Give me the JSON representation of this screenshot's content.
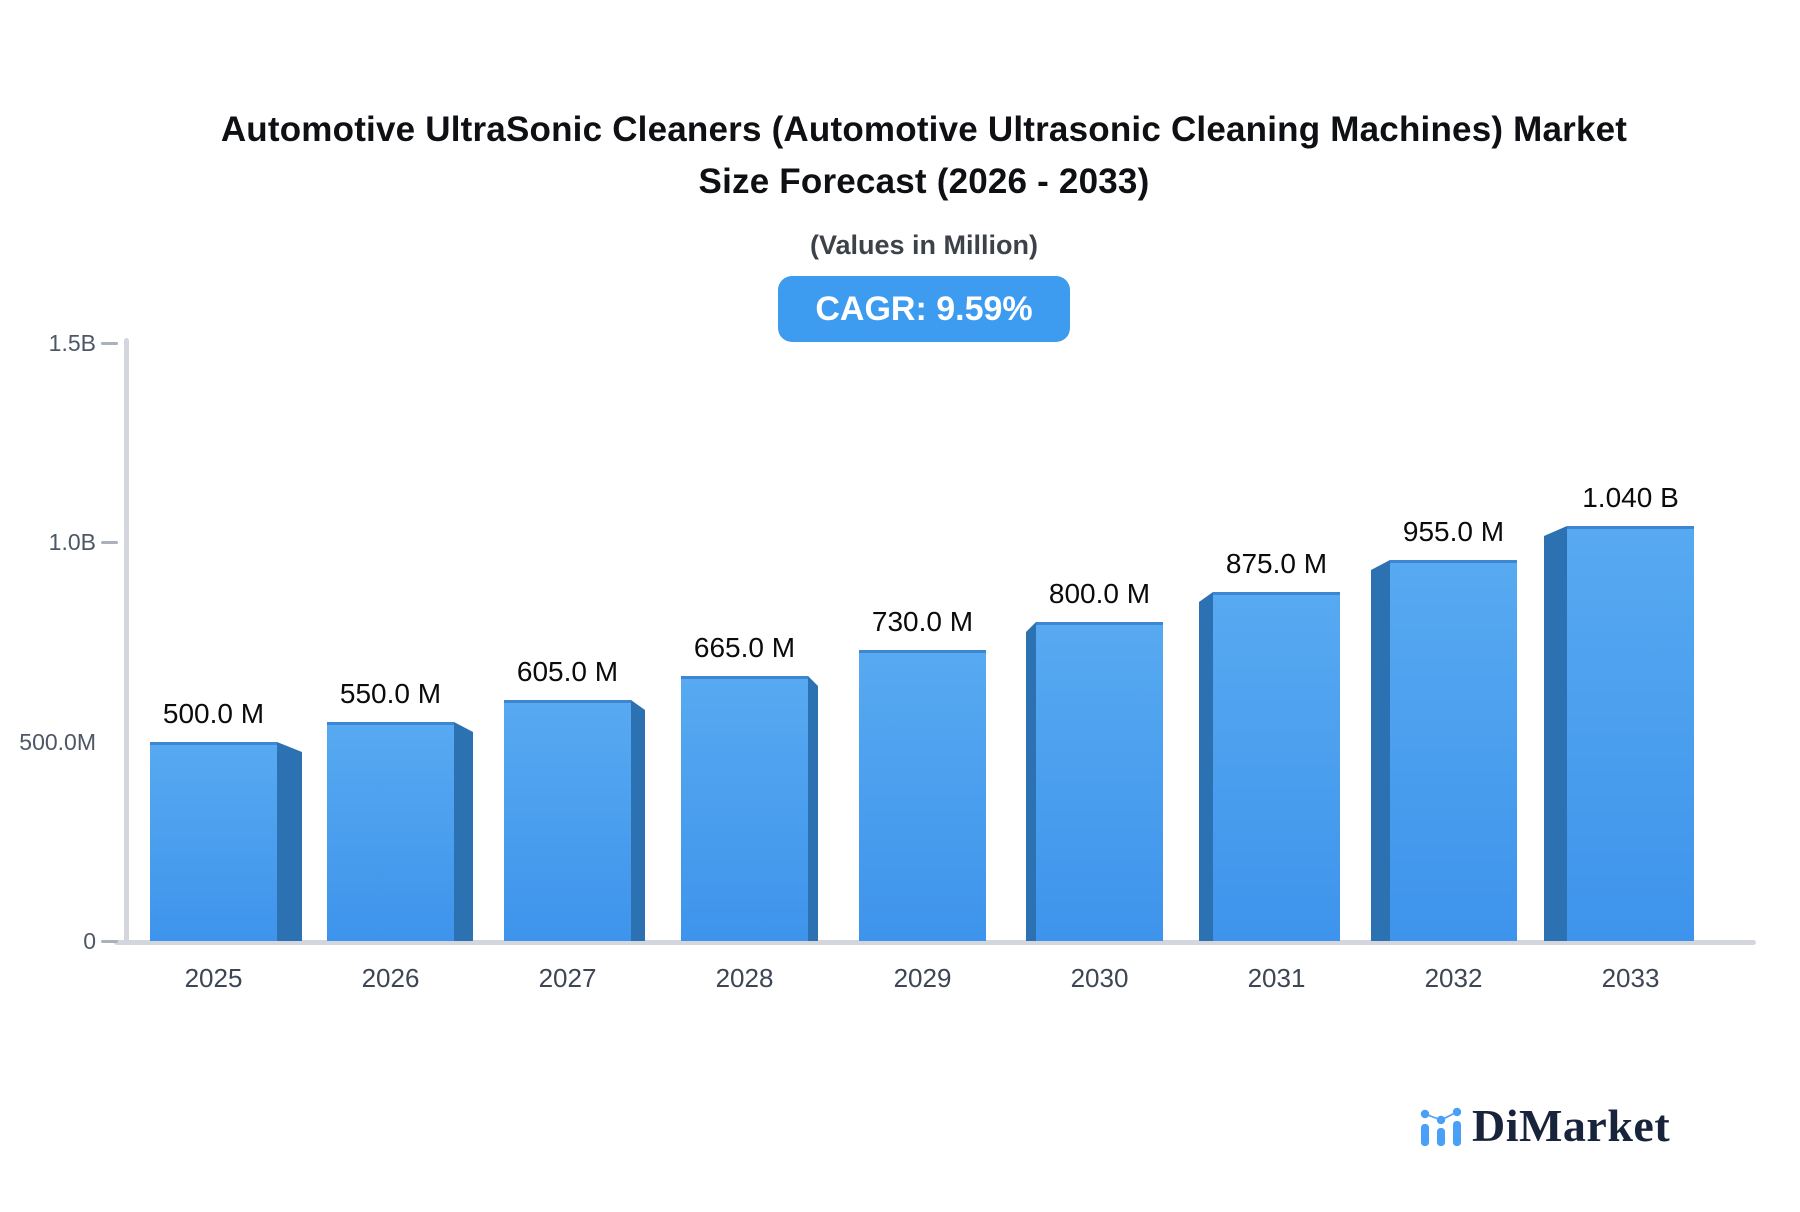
{
  "header": {
    "title_line1": "Automotive UltraSonic Cleaners (Automotive Ultrasonic Cleaning Machines) Market",
    "title_line2": "Size Forecast (2026 - 2033)",
    "subtitle": "(Values in Million)",
    "cagr_label": "CAGR: 9.59%"
  },
  "chart_data": {
    "type": "bar",
    "title": "Automotive UltraSonic Cleaners (Automotive Ultrasonic Cleaning Machines) Market Size Forecast (2026 - 2033)",
    "subtitle": "(Values in Million)",
    "cagr_percent": 9.59,
    "categories": [
      "2025",
      "2026",
      "2027",
      "2028",
      "2029",
      "2030",
      "2031",
      "2032",
      "2033"
    ],
    "values_millions": [
      500,
      550,
      605,
      665,
      730,
      800,
      875,
      955,
      1040
    ],
    "value_labels": [
      "500.0 M",
      "550.0 M",
      "605.0 M",
      "665.0 M",
      "730.0 M",
      "800.0 M",
      "875.0 M",
      "955.0 M",
      "1.040 B"
    ],
    "ylim_millions": [
      0,
      1500
    ],
    "y_ticks": [
      {
        "label": "1.5B",
        "value": 1500,
        "dash": true
      },
      {
        "label": "1.0B",
        "value": 1000,
        "dash": true
      },
      {
        "label": "500.0M",
        "value": 500,
        "dash": false
      },
      {
        "label": "0",
        "value": 0,
        "dash": true
      }
    ],
    "grid": false,
    "legend": "none"
  },
  "colors": {
    "badge_bg": "#3d9bf0",
    "bar_face_top": "#57a9f0",
    "bar_face_bottom": "#3e94ec",
    "bar_top_edge": "#3c86d2",
    "bar_side": "#2c72b3",
    "axis_line": "#d3d6dc",
    "tick_dash": "#a9b1bb"
  },
  "footer": {
    "brand": "DiMarket"
  }
}
